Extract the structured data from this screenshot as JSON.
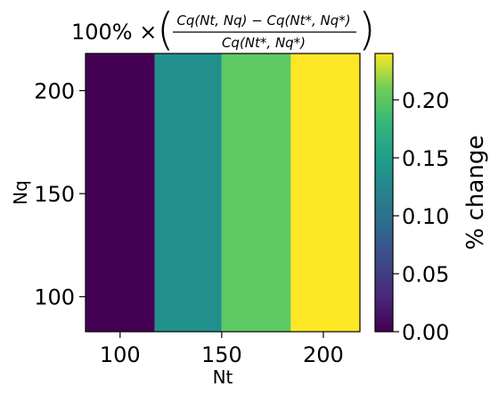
{
  "chart_data": {
    "type": "heatmap",
    "title": {
      "prefix": "100% ×",
      "numerator": "Cq(Nt, Nq) − Cq(Nt*, Nq*)",
      "denominator": "Cq(Nt*, Nq*)"
    },
    "xlabel": "Nt",
    "ylabel": "Nq",
    "x_range": [
      83,
      218
    ],
    "y_range": [
      83,
      218
    ],
    "x_ticks": [
      100,
      150,
      200
    ],
    "y_ticks": [
      100,
      150,
      200
    ],
    "cells": [
      {
        "x_start": 83,
        "x_end": 117,
        "value": 0.0,
        "color": "#440154"
      },
      {
        "x_start": 117,
        "x_end": 150,
        "value": 0.12,
        "color": "#21908d"
      },
      {
        "x_start": 150,
        "x_end": 184,
        "value": 0.18,
        "color": "#5ec962"
      },
      {
        "x_start": 184,
        "x_end": 218,
        "value": 0.24,
        "color": "#fde725"
      }
    ],
    "colorbar": {
      "label": "% change",
      "min": 0.0,
      "max": 0.24,
      "ticks": [
        "0.00",
        "0.05",
        "0.10",
        "0.15",
        "0.20"
      ],
      "colormap": "viridis"
    }
  }
}
